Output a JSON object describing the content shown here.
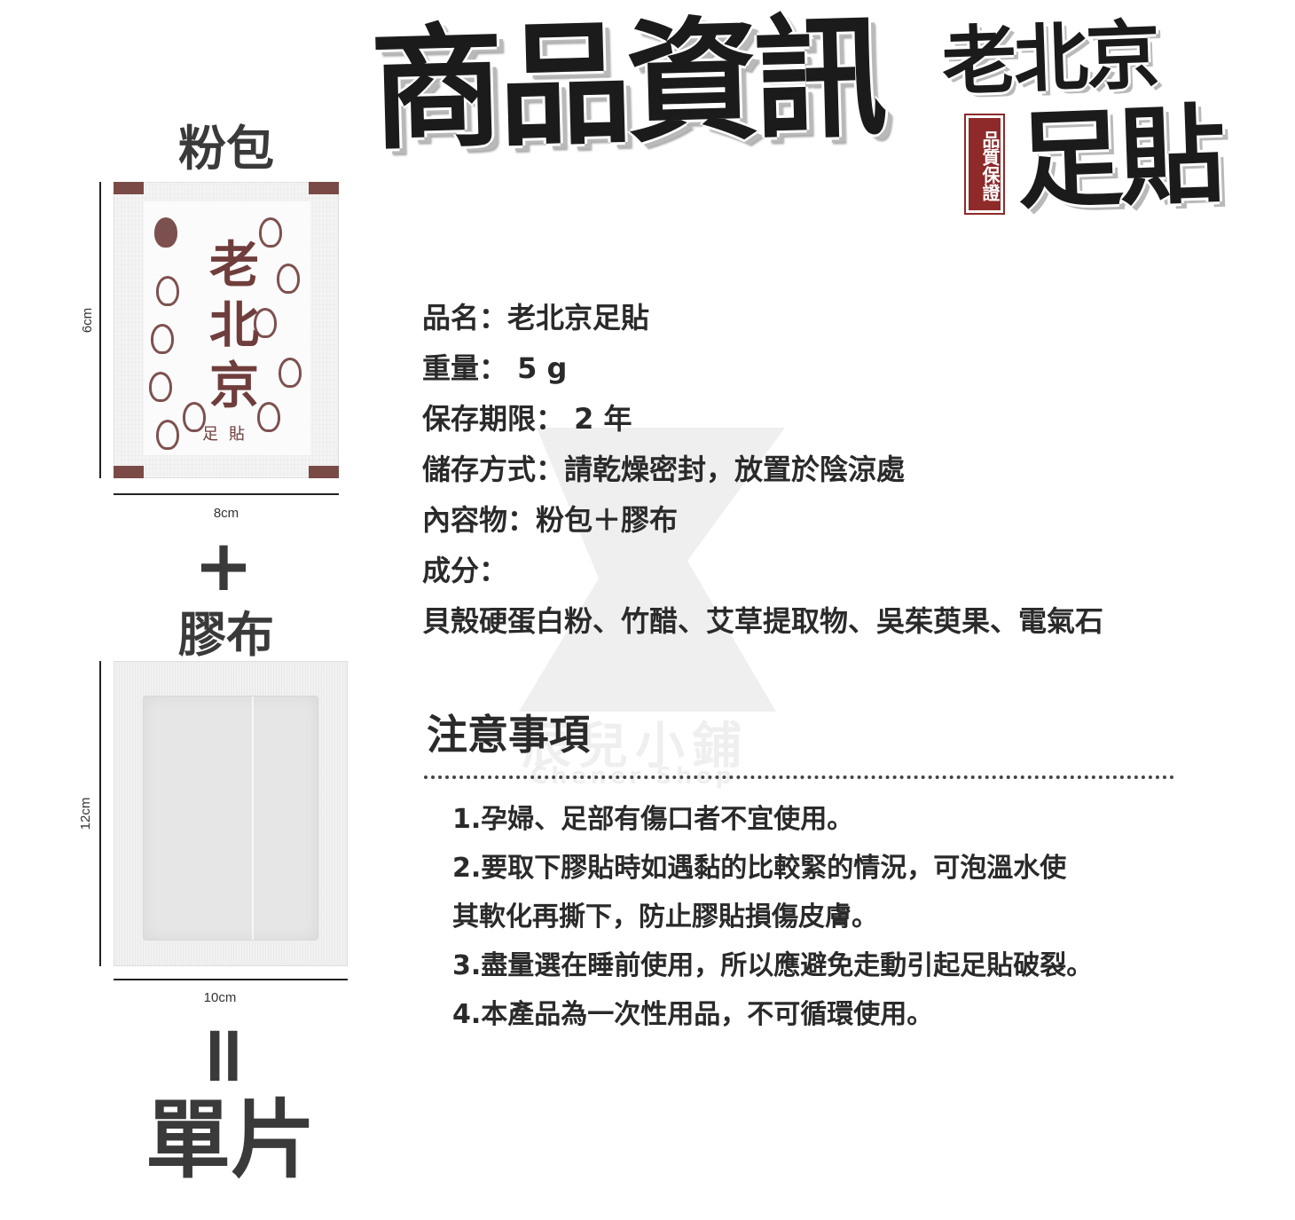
{
  "header": {
    "title": "商品資訊",
    "brand_top": "老北京",
    "brand_bottom": "足貼",
    "seal": "品質保證"
  },
  "left": {
    "powder_label": "粉包",
    "powder_width": "8cm",
    "powder_height": "6cm",
    "pouch_logo": "老北京",
    "pouch_sub": "足貼",
    "plus": "+",
    "plaster_label": "膠布",
    "plaster_width": "10cm",
    "plaster_height": "12cm",
    "equals": "=",
    "result": "單片"
  },
  "info": {
    "rows": [
      "品名：老北京足貼",
      "重量： 5 g",
      "保存期限： 2 年",
      "儲存方式：請乾燥密封，放置於陰涼處",
      "內容物：粉包＋膠布",
      "成分：",
      "貝殼硬蛋白粉、竹醋、艾草提取物、吳茱萸果、電氣石"
    ]
  },
  "notice": {
    "title": "注意事項",
    "lines": [
      "1.孕婦、足部有傷口者不宜使用。",
      "2.要取下膠貼時如遇黏的比較緊的情況，可泡溫水使",
      "其軟化再撕下，防止膠貼損傷皮膚。",
      "3.盡量選在睡前使用，所以應避免走動引起足貼破裂。",
      "4.本產品為一次性用品，不可循環使用。"
    ]
  },
  "watermark": {
    "name": "辰兒小鋪",
    "sub": "Chener Shop"
  },
  "colors": {
    "pouch_brown": "#6f3e3c",
    "seal_red": "#8e2a2a",
    "text": "#2a2a2a"
  }
}
